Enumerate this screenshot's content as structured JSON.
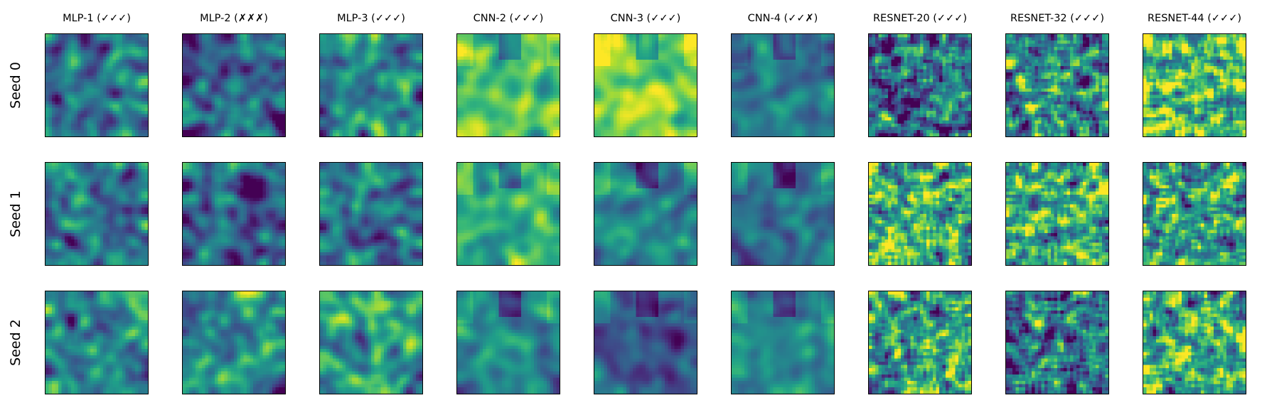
{
  "chart_data": {
    "type": "heatmap",
    "title": "",
    "colormap": "viridis",
    "grid": false,
    "columns": [
      "MLP-1 (✓✓✓)",
      "MLP-2 (✗✗✗)",
      "MLP-3 (✓✓✓)",
      "CNN-2 (✓✓✓)",
      "CNN-3 (✓✓✓)",
      "CNN-4 (✓✓✗)",
      "RESNET-20 (✓✓✓)",
      "RESNET-32 (✓✓✓)",
      "RESNET-44 (✓✓✓)"
    ],
    "rows": [
      "Seed 0",
      "Seed 1",
      "Seed 2"
    ],
    "cell_resolution": [
      32,
      32
    ],
    "mean_intensity": [
      [
        0.38,
        0.3,
        0.45,
        0.72,
        0.8,
        0.42,
        0.35,
        0.45,
        0.7
      ],
      [
        0.4,
        0.3,
        0.38,
        0.62,
        0.45,
        0.38,
        0.62,
        0.6,
        0.55
      ],
      [
        0.45,
        0.48,
        0.55,
        0.45,
        0.28,
        0.48,
        0.55,
        0.42,
        0.62
      ]
    ]
  }
}
